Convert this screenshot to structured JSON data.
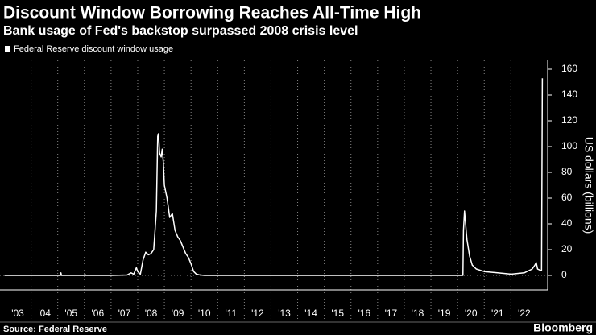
{
  "chart_data": {
    "type": "line",
    "title": "Discount Window Borrowing Reaches All-Time High",
    "subtitle": "Bank usage of Fed's backstop surpassed 2008 crisis level",
    "y_label": "US dollars (billions)",
    "source": "Source: Federal Reserve",
    "brand": "Bloomberg",
    "x": [
      2003.0,
      2005.1,
      2005.12,
      2005.14,
      2006.0,
      2006.02,
      2006.04,
      2007.0,
      2007.6,
      2007.75,
      2007.85,
      2007.95,
      2008.0,
      2008.1,
      2008.2,
      2008.3,
      2008.4,
      2008.5,
      2008.6,
      2008.7,
      2008.75,
      2008.78,
      2008.82,
      2008.88,
      2008.92,
      2008.96,
      2009.0,
      2009.05,
      2009.1,
      2009.2,
      2009.3,
      2009.4,
      2009.5,
      2009.6,
      2009.7,
      2009.8,
      2009.9,
      2010.0,
      2010.1,
      2010.2,
      2010.3,
      2010.5,
      2020.2,
      2020.22,
      2020.26,
      2020.3,
      2020.35,
      2020.45,
      2020.55,
      2020.7,
      2021.0,
      2021.5,
      2022.0,
      2022.5,
      2022.8,
      2022.9,
      2022.95,
      2023.0,
      2023.1,
      2023.15,
      2023.18
    ],
    "series": [
      {
        "name": "Federal Reserve discount window usage",
        "color": "#ffffff",
        "values": [
          0,
          0,
          2,
          0,
          0,
          1,
          0,
          0,
          0.3,
          2,
          1,
          6,
          3,
          1,
          12,
          18,
          16,
          17,
          20,
          50,
          108,
          110,
          95,
          92,
          98,
          88,
          70,
          65,
          60,
          45,
          48,
          35,
          30,
          27,
          22,
          17,
          14,
          9,
          3,
          1,
          0.5,
          0,
          0,
          35,
          50,
          40,
          28,
          15,
          8,
          5,
          3,
          2,
          1,
          2,
          5,
          8,
          10,
          5,
          4,
          4,
          153
        ]
      }
    ],
    "xlim": [
      2003,
      2023.38
    ],
    "xticks": [
      {
        "value": 2003,
        "label": "'03"
      },
      {
        "value": 2004,
        "label": "'04"
      },
      {
        "value": 2005,
        "label": "'05"
      },
      {
        "value": 2006,
        "label": "'06"
      },
      {
        "value": 2007,
        "label": "'07"
      },
      {
        "value": 2008,
        "label": "'08"
      },
      {
        "value": 2009,
        "label": "'09"
      },
      {
        "value": 2010,
        "label": "'10"
      },
      {
        "value": 2011,
        "label": "'11"
      },
      {
        "value": 2012,
        "label": "'12"
      },
      {
        "value": 2013,
        "label": "'13"
      },
      {
        "value": 2014,
        "label": "'14"
      },
      {
        "value": 2015,
        "label": "'15"
      },
      {
        "value": 2016,
        "label": "'16"
      },
      {
        "value": 2017,
        "label": "'17"
      },
      {
        "value": 2018,
        "label": "'18"
      },
      {
        "value": 2019,
        "label": "'19"
      },
      {
        "value": 2020,
        "label": "'20"
      },
      {
        "value": 2021,
        "label": "'21"
      },
      {
        "value": 2022,
        "label": "'22"
      }
    ],
    "ylim": [
      0,
      160
    ],
    "yticks": [
      0,
      20,
      40,
      60,
      80,
      100,
      120,
      140,
      160
    ]
  }
}
